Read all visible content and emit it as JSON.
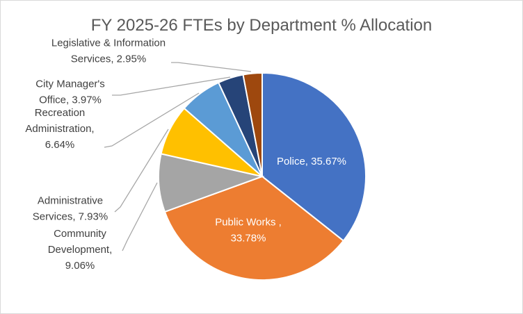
{
  "chart_data": {
    "type": "pie",
    "title": "FY 2025-26 FTEs by Department % Allocation",
    "slices": [
      {
        "name": "Police",
        "value": 35.67,
        "color": "#4472C4",
        "label_lines": [
          "Police, 35.67%"
        ]
      },
      {
        "name": "Public Works",
        "value": 33.78,
        "color": "#ED7D31",
        "label_lines": [
          "Public Works ,",
          "33.78%"
        ]
      },
      {
        "name": "Community Development",
        "value": 9.06,
        "color": "#A5A5A5",
        "label_lines": [
          "Community",
          "Development,",
          "9.06%"
        ]
      },
      {
        "name": "Administrative Services",
        "value": 7.93,
        "color": "#FFC000",
        "label_lines": [
          "Administrative",
          "Services, 7.93%"
        ]
      },
      {
        "name": "Recreation Administration",
        "value": 6.64,
        "color": "#5B9BD5",
        "label_lines": [
          "Recreation",
          "Administration,",
          "6.64%"
        ]
      },
      {
        "name": "City Manager's Office",
        "value": 3.97,
        "color": "#264478",
        "label_lines": [
          "City Manager's",
          "Office, 3.97%"
        ]
      },
      {
        "name": "Legislative & Information Services",
        "value": 2.95,
        "color": "#9E480E",
        "label_lines": [
          "Legislative & Information",
          "Services, 2.95%"
        ]
      }
    ],
    "legend": "none",
    "labels": "data labels with leader lines"
  }
}
